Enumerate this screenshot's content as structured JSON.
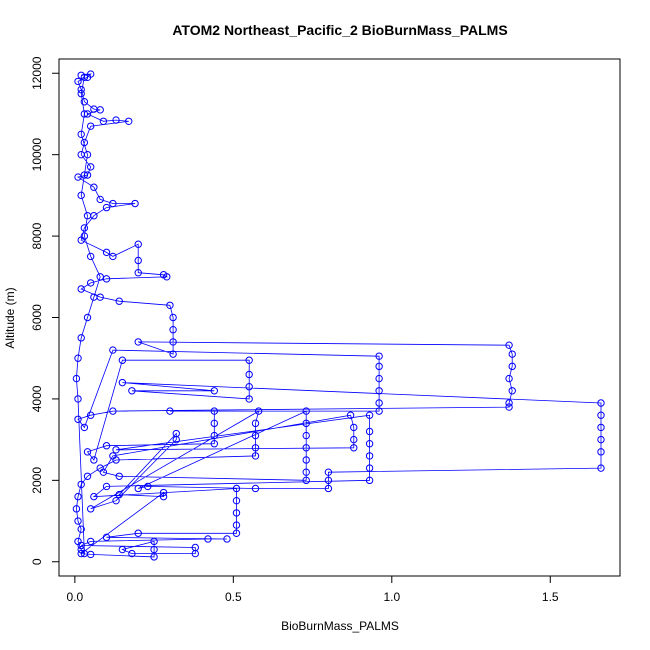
{
  "chart_data": {
    "type": "line",
    "title": "ATOM2 Northeast_Pacific_2 BioBurnMass_PALMS",
    "xlabel": "BioBurnMass_PALMS",
    "ylabel": "Altitude (m)",
    "xlim": [
      -0.05,
      1.72
    ],
    "ylim": [
      -350,
      12350
    ],
    "xticks": [
      0,
      0.5,
      1,
      1.5
    ],
    "xtick_labels": [
      "0.0",
      "0.5",
      "1.0",
      "1.5"
    ],
    "yticks": [
      0,
      2000,
      4000,
      6000,
      8000,
      10000,
      12000
    ],
    "ytick_labels": [
      "0",
      "2000",
      "4000",
      "6000",
      "8000",
      "10000",
      "12000"
    ],
    "marker": "open-circle",
    "line": true,
    "grid": false,
    "series": [
      {
        "color": "#0000ff",
        "points": [
          [
            0.02,
            11950
          ],
          [
            0.05,
            11980
          ],
          [
            0.04,
            11900
          ],
          [
            0.01,
            11800
          ],
          [
            0.02,
            11600
          ],
          [
            0.03,
            11300
          ],
          [
            0.06,
            11120
          ],
          [
            0.08,
            11100
          ],
          [
            0.04,
            11000
          ],
          [
            0.09,
            10820
          ],
          [
            0.13,
            10850
          ],
          [
            0.17,
            10820
          ],
          [
            0.05,
            10700
          ],
          [
            0.03,
            10300
          ],
          [
            0.02,
            10000
          ],
          [
            0.05,
            9700
          ],
          [
            0.04,
            9500
          ],
          [
            0.01,
            9450
          ],
          [
            0.06,
            9200
          ],
          [
            0.08,
            8900
          ],
          [
            0.12,
            8800
          ],
          [
            0.19,
            8800
          ],
          [
            0.1,
            8700
          ],
          [
            0.06,
            8500
          ],
          [
            0.03,
            8200
          ],
          [
            0.02,
            7900
          ],
          [
            0.1,
            7600
          ],
          [
            0.12,
            7500
          ],
          [
            0.2,
            7800
          ],
          [
            0.2,
            7400
          ],
          [
            0.2,
            7100
          ],
          [
            0.28,
            7050
          ],
          [
            0.29,
            7000
          ],
          [
            0.1,
            6950
          ],
          [
            0.05,
            6850
          ],
          [
            0.02,
            6700
          ],
          [
            0.08,
            6500
          ],
          [
            0.14,
            6400
          ],
          [
            0.3,
            6300
          ],
          [
            0.31,
            6000
          ],
          [
            0.31,
            5700
          ],
          [
            0.31,
            5400
          ],
          [
            0.31,
            5100
          ],
          [
            0.2,
            5400
          ],
          [
            1.37,
            5320
          ],
          [
            1.38,
            5100
          ],
          [
            1.38,
            4800
          ],
          [
            1.37,
            4500
          ],
          [
            1.38,
            4200
          ],
          [
            1.37,
            3900
          ],
          [
            1.37,
            3800
          ],
          [
            0.12,
            3700
          ],
          [
            0.05,
            3600
          ],
          [
            0.01,
            3500
          ],
          [
            0.03,
            3300
          ],
          [
            0.12,
            5200
          ],
          [
            0.96,
            5050
          ],
          [
            0.96,
            4800
          ],
          [
            0.96,
            4500
          ],
          [
            0.96,
            4200
          ],
          [
            0.96,
            3900
          ],
          [
            0.96,
            3700
          ],
          [
            0.3,
            3700
          ],
          [
            0.44,
            3700
          ],
          [
            0.44,
            3400
          ],
          [
            0.44,
            3100
          ],
          [
            0.44,
            2900
          ],
          [
            0.1,
            2850
          ],
          [
            0.04,
            2700
          ],
          [
            0.06,
            2500
          ],
          [
            0.15,
            4950
          ],
          [
            0.55,
            4950
          ],
          [
            0.55,
            4600
          ],
          [
            0.55,
            4300
          ],
          [
            0.55,
            4000
          ],
          [
            0.18,
            4200
          ],
          [
            0.44,
            4200
          ],
          [
            0.15,
            4400
          ],
          [
            1.66,
            3900
          ],
          [
            1.66,
            3600
          ],
          [
            1.66,
            3300
          ],
          [
            1.66,
            3000
          ],
          [
            1.66,
            2700
          ],
          [
            1.66,
            2300
          ],
          [
            0.8,
            2200
          ],
          [
            0.8,
            2000
          ],
          [
            0.8,
            1800
          ],
          [
            0.57,
            1800
          ],
          [
            0.23,
            1850
          ],
          [
            0.2,
            1800
          ],
          [
            0.73,
            3700
          ],
          [
            0.73,
            3400
          ],
          [
            0.73,
            3100
          ],
          [
            0.73,
            2800
          ],
          [
            0.73,
            2500
          ],
          [
            0.73,
            2200
          ],
          [
            0.73,
            2000
          ],
          [
            0.14,
            2100
          ],
          [
            0.09,
            2200
          ],
          [
            0.12,
            2600
          ],
          [
            0.87,
            3600
          ],
          [
            0.88,
            3300
          ],
          [
            0.88,
            3000
          ],
          [
            0.88,
            2800
          ],
          [
            0.13,
            2750
          ],
          [
            0.93,
            3600
          ],
          [
            0.93,
            3200
          ],
          [
            0.93,
            2900
          ],
          [
            0.93,
            2600
          ],
          [
            0.93,
            2300
          ],
          [
            0.93,
            2000
          ],
          [
            0.1,
            1850
          ],
          [
            0.06,
            1600
          ],
          [
            0.51,
            1800
          ],
          [
            0.51,
            1500
          ],
          [
            0.51,
            1200
          ],
          [
            0.51,
            900
          ],
          [
            0.51,
            700
          ],
          [
            0.2,
            700
          ],
          [
            0.1,
            600
          ],
          [
            0.48,
            560
          ],
          [
            0.42,
            560
          ],
          [
            0.05,
            500
          ],
          [
            0.02,
            400
          ],
          [
            0.38,
            350
          ],
          [
            0.38,
            200
          ],
          [
            0.18,
            200
          ],
          [
            0.15,
            300
          ],
          [
            0.25,
            500
          ],
          [
            0.25,
            300
          ],
          [
            0.25,
            120
          ],
          [
            0.05,
            180
          ],
          [
            0.02,
            200
          ],
          [
            0.28,
            1700
          ],
          [
            0.28,
            1600
          ],
          [
            0.14,
            1650
          ],
          [
            0.32,
            3150
          ],
          [
            0.32,
            3000
          ],
          [
            0.13,
            1500
          ],
          [
            0.05,
            1300
          ],
          [
            0.58,
            3700
          ],
          [
            0.57,
            3400
          ],
          [
            0.57,
            3100
          ],
          [
            0.57,
            2800
          ],
          [
            0.57,
            2600
          ],
          [
            0.13,
            2500
          ],
          [
            0.08,
            2300
          ],
          [
            0.04,
            2100
          ],
          [
            0.02,
            1900
          ],
          [
            0.01,
            1600
          ],
          [
            0.005,
            1300
          ],
          [
            0.01,
            1000
          ],
          [
            0.02,
            800
          ],
          [
            0.01,
            500
          ],
          [
            0.02,
            300
          ],
          [
            0.03,
            200
          ],
          [
            0.01,
            4000
          ],
          [
            0.005,
            4500
          ],
          [
            0.01,
            5000
          ],
          [
            0.02,
            5500
          ],
          [
            0.04,
            6000
          ],
          [
            0.06,
            6500
          ],
          [
            0.08,
            7000
          ],
          [
            0.05,
            7500
          ],
          [
            0.03,
            8000
          ],
          [
            0.04,
            8500
          ],
          [
            0.02,
            9000
          ],
          [
            0.03,
            9500
          ],
          [
            0.04,
            10000
          ],
          [
            0.02,
            10500
          ],
          [
            0.03,
            11000
          ],
          [
            0.02,
            11500
          ],
          [
            0.03,
            11900
          ]
        ]
      }
    ]
  }
}
